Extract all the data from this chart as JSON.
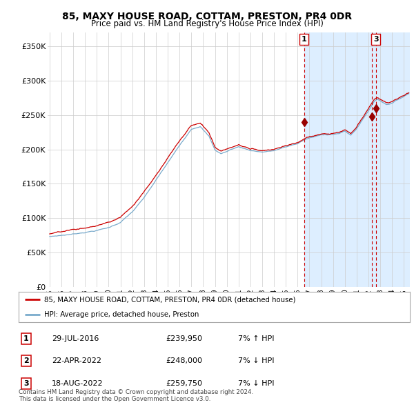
{
  "title": "85, MAXY HOUSE ROAD, COTTAM, PRESTON, PR4 0DR",
  "subtitle": "Price paid vs. HM Land Registry's House Price Index (HPI)",
  "legend_line1": "85, MAXY HOUSE ROAD, COTTAM, PRESTON, PR4 0DR (detached house)",
  "legend_line2": "HPI: Average price, detached house, Preston",
  "red_color": "#cc0000",
  "blue_color": "#7aabcc",
  "marker_fill": "#990000",
  "ylim": [
    0,
    370000
  ],
  "yticks": [
    0,
    50000,
    100000,
    150000,
    200000,
    250000,
    300000,
    350000
  ],
  "ytick_labels": [
    "£0",
    "£50K",
    "£100K",
    "£150K",
    "£200K",
    "£250K",
    "£300K",
    "£350K"
  ],
  "transactions": [
    {
      "num": 1,
      "date": "29-JUL-2016",
      "price": 239950,
      "hpi_txt": "7% ↑ HPI",
      "year": 2016.55
    },
    {
      "num": 2,
      "date": "22-APR-2022",
      "price": 248000,
      "hpi_txt": "7% ↓ HPI",
      "year": 2022.29
    },
    {
      "num": 3,
      "date": "18-AUG-2022",
      "price": 259750,
      "hpi_txt": "7% ↓ HPI",
      "year": 2022.62
    }
  ],
  "footer": "Contains HM Land Registry data © Crown copyright and database right 2024.\nThis data is licensed under the Open Government Licence v3.0.",
  "background_color": "#ffffff",
  "grid_color": "#cccccc",
  "shade_color": "#ddeeff",
  "xlim_start": 1994.83,
  "xlim_end": 2025.5
}
